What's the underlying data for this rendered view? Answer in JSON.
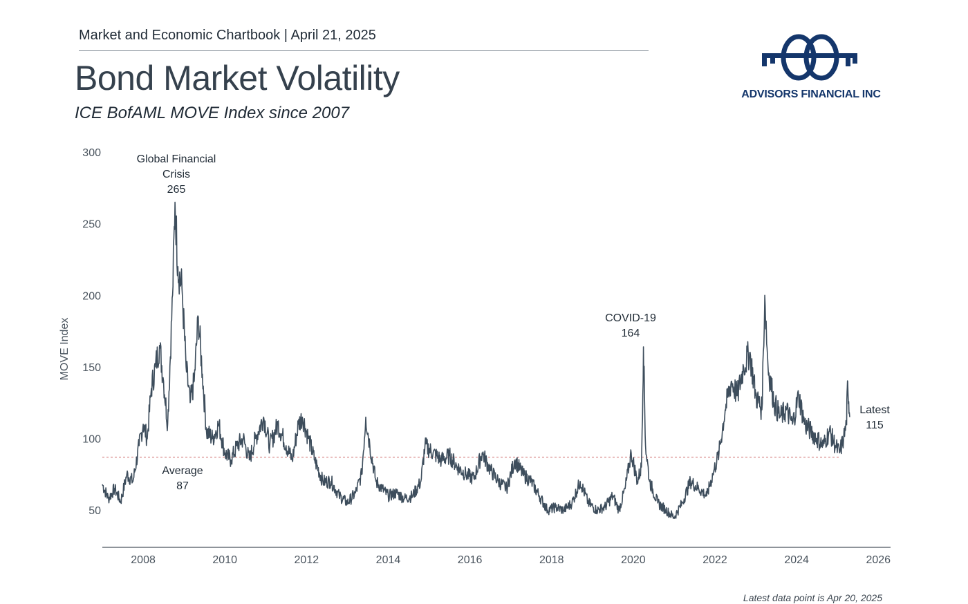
{
  "header": {
    "text": "Market and Economic Chartbook | April 21, 2025"
  },
  "title": "Bond Market Volatility",
  "subtitle": "ICE BofAML MOVE Index since 2007",
  "logo": {
    "text": "ADVISORS FINANCIAL INC",
    "color": "#14366b"
  },
  "footnote": "Latest data point is Apr 20, 2025",
  "chart_data": {
    "type": "line",
    "ylabel": "MOVE Index",
    "xlabel": "",
    "xlim": [
      2007.0,
      2026.3
    ],
    "ylim": [
      25,
      300
    ],
    "yticks": [
      50,
      100,
      150,
      200,
      250,
      300
    ],
    "xticks": [
      2008,
      2010,
      2012,
      2014,
      2016,
      2018,
      2020,
      2022,
      2024,
      2026
    ],
    "grid": false,
    "line_color": "#3d4d5c",
    "average_color": "#d98c8c",
    "average": 87,
    "series": [
      {
        "x": [
          2007.0,
          2007.15,
          2007.3,
          2007.45,
          2007.6,
          2007.75,
          2007.9,
          2008.0,
          2008.1,
          2008.2,
          2008.3,
          2008.4,
          2008.5,
          2008.6,
          2008.72,
          2008.78,
          2008.85,
          2008.95,
          2009.05,
          2009.15,
          2009.25,
          2009.35,
          2009.45,
          2009.55,
          2009.7,
          2009.85,
          2010.0,
          2010.15,
          2010.3,
          2010.45,
          2010.6,
          2010.75,
          2010.95,
          2011.1,
          2011.3,
          2011.5,
          2011.65,
          2011.8,
          2011.9,
          2012.05,
          2012.2,
          2012.4,
          2012.6,
          2012.8,
          2013.0,
          2013.2,
          2013.35,
          2013.45,
          2013.55,
          2013.7,
          2013.85,
          2014.0,
          2014.2,
          2014.4,
          2014.6,
          2014.8,
          2014.9,
          2015.1,
          2015.3,
          2015.5,
          2015.7,
          2015.9,
          2016.1,
          2016.3,
          2016.5,
          2016.7,
          2016.9,
          2017.1,
          2017.3,
          2017.5,
          2017.7,
          2017.9,
          2018.1,
          2018.3,
          2018.5,
          2018.7,
          2018.9,
          2019.1,
          2019.3,
          2019.5,
          2019.65,
          2019.8,
          2019.95,
          2020.1,
          2020.2,
          2020.25,
          2020.3,
          2020.4,
          2020.6,
          2020.8,
          2021.0,
          2021.2,
          2021.4,
          2021.6,
          2021.8,
          2021.95,
          2022.1,
          2022.25,
          2022.4,
          2022.55,
          2022.7,
          2022.85,
          2023.0,
          2023.15,
          2023.22,
          2023.3,
          2023.45,
          2023.6,
          2023.75,
          2023.9,
          2024.05,
          2024.2,
          2024.35,
          2024.5,
          2024.65,
          2024.8,
          2024.95,
          2025.05,
          2025.15,
          2025.22,
          2025.25,
          2025.3
        ],
        "y": [
          68,
          58,
          65,
          56,
          75,
          70,
          95,
          110,
          100,
          135,
          150,
          165,
          140,
          110,
          200,
          265,
          220,
          205,
          150,
          125,
          140,
          185,
          145,
          105,
          100,
          110,
          90,
          85,
          95,
          100,
          85,
          100,
          115,
          95,
          110,
          95,
          85,
          110,
          115,
          100,
          85,
          70,
          70,
          60,
          55,
          62,
          75,
          115,
          95,
          70,
          65,
          60,
          62,
          58,
          60,
          70,
          95,
          90,
          85,
          88,
          80,
          75,
          72,
          90,
          78,
          70,
          65,
          85,
          75,
          70,
          60,
          50,
          52,
          50,
          55,
          70,
          55,
          50,
          52,
          60,
          50,
          65,
          90,
          70,
          80,
          164,
          95,
          70,
          55,
          50,
          45,
          55,
          70,
          65,
          60,
          75,
          90,
          120,
          140,
          130,
          150,
          160,
          130,
          120,
          200,
          150,
          125,
          115,
          120,
          110,
          130,
          110,
          105,
          100,
          95,
          105,
          95,
          90,
          100,
          110,
          140,
          115
        ]
      }
    ],
    "annotations": [
      {
        "lines": [
          "Global Financial",
          "Crisis",
          "265"
        ],
        "x": 2008.85,
        "y": 265
      },
      {
        "lines": [
          "COVID-19",
          "164"
        ],
        "x": 2020.25,
        "y": 164
      },
      {
        "lines": [
          "Average",
          "87"
        ],
        "x": 2008.95,
        "y": 87
      },
      {
        "lines": [
          "Latest",
          "115"
        ],
        "x": 2025.3,
        "y": 115
      }
    ]
  }
}
